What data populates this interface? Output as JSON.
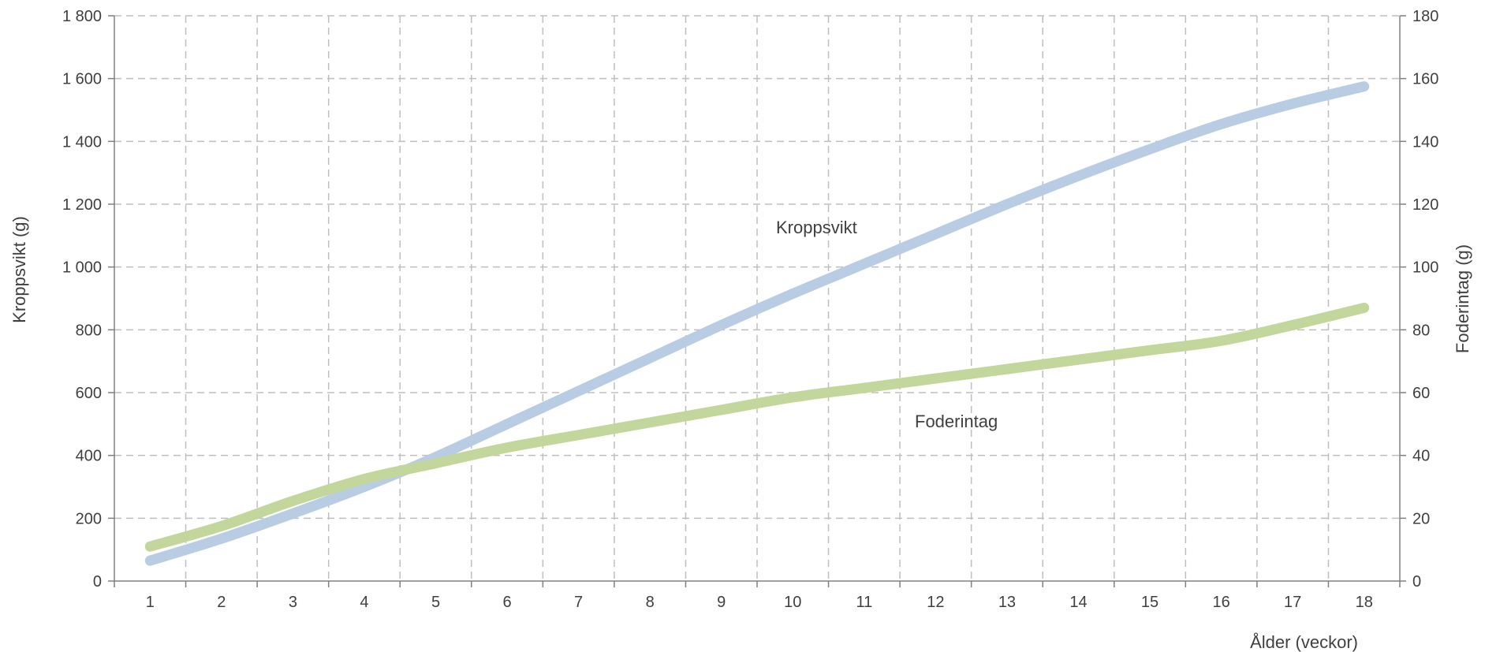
{
  "chart_data": {
    "type": "line",
    "x": [
      1,
      2,
      3,
      4,
      5,
      6,
      7,
      8,
      9,
      10,
      11,
      12,
      13,
      14,
      15,
      16,
      17,
      18
    ],
    "x_tick_labels": [
      "1",
      "2",
      "3",
      "4",
      "5",
      "6",
      "7",
      "8",
      "9",
      "10",
      "11",
      "12",
      "13",
      "14",
      "15",
      "16",
      "17",
      "18"
    ],
    "xlabel": "Ålder (veckor)",
    "ylabel_left": "Kroppsvikt (g)",
    "ylabel_right": "Foderintag (g)",
    "ylim_left": [
      0,
      1800
    ],
    "ylim_right": [
      0,
      180
    ],
    "y_left_ticks": [
      "0",
      "200",
      "400",
      "600",
      "800",
      "1 000",
      "1 200",
      "1 400",
      "1 600",
      "1 800"
    ],
    "y_right_ticks": [
      "0",
      "20",
      "40",
      "60",
      "80",
      "100",
      "120",
      "140",
      "160",
      "180"
    ],
    "grid": true,
    "legend": "none",
    "series": [
      {
        "name": "Kroppsvikt",
        "axis": "left",
        "color": "#b8cce4",
        "values": [
          65,
          135,
          215,
          300,
          395,
          500,
          605,
          710,
          815,
          915,
          1010,
          1105,
          1200,
          1290,
          1375,
          1455,
          1520,
          1575
        ]
      },
      {
        "name": "Foderintag",
        "axis": "right",
        "color": "#c3d69b",
        "values": [
          11,
          17.5,
          25.5,
          32.5,
          37.5,
          42.5,
          46.5,
          50.5,
          54.5,
          58.5,
          61.5,
          64.5,
          67.5,
          70.5,
          73.5,
          76.5,
          81.5,
          87
        ]
      }
    ]
  }
}
